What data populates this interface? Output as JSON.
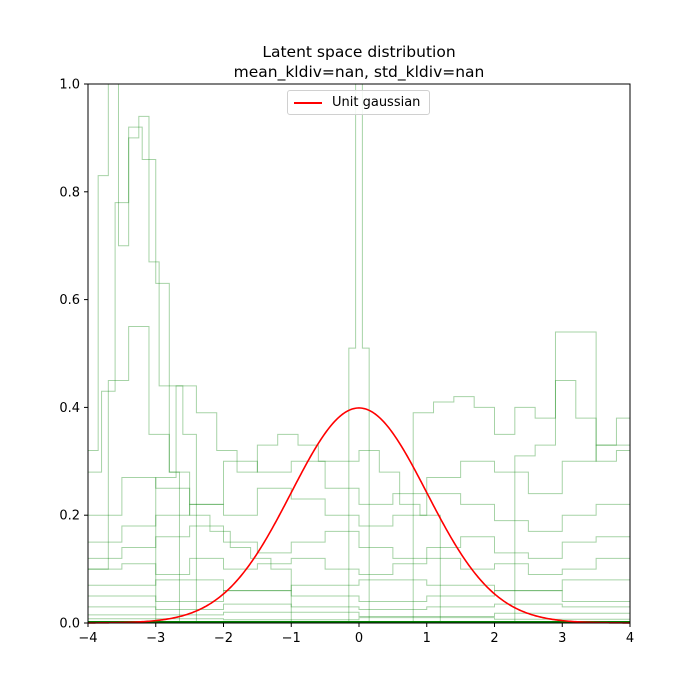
{
  "title_lines": [
    "Latent space distribution",
    "mean_kldiv=nan, std_kldiv=nan"
  ],
  "legend": {
    "label": "Unit gaussian",
    "location": "upper center"
  },
  "colors": {
    "gaussian": "#ff0000",
    "histograms": "#008000",
    "axes": "#000000"
  },
  "chart_data": {
    "type": "line",
    "title": "Latent space distribution\nmean_kldiv=nan, std_kldiv=nan",
    "xlabel": "",
    "ylabel": "",
    "xlim": [
      -4,
      4
    ],
    "ylim": [
      0,
      1.0
    ],
    "x_ticks": [
      "−4",
      "−3",
      "−2",
      "−1",
      "0",
      "1",
      "2",
      "3",
      "4"
    ],
    "y_ticks": [
      "0.0",
      "0.2",
      "0.4",
      "0.6",
      "0.8",
      "1.0"
    ],
    "grid": false,
    "legend_position": "top-center",
    "series": [
      {
        "name": "Unit gaussian",
        "kind": "curve",
        "function": "standard normal pdf",
        "x_range": [
          -4,
          4
        ],
        "peak": 0.399
      }
    ],
    "histograms": [
      {
        "edges": [
          -4,
          -3.85,
          -3.7,
          -3.55,
          -3.4,
          -3.25,
          -3.1,
          -2.95,
          -2.8,
          -2.65
        ],
        "values": [
          0.32,
          0.83,
          1.0,
          0.7,
          0.9,
          0.94,
          0.67,
          0.44,
          0.28
        ]
      },
      {
        "edges": [
          -4,
          -3.8,
          -3.6,
          -3.4,
          -3.2,
          -3.0,
          -2.8,
          -2.6,
          -2.4
        ],
        "values": [
          0.28,
          0.43,
          0.78,
          0.92,
          0.86,
          0.63,
          0.44,
          0.35
        ]
      },
      {
        "edges": [
          -4,
          -3.7,
          -3.4,
          -3.1,
          -2.8,
          -2.5,
          -2.2,
          -1.9,
          -1.6,
          -1.3,
          -1.0
        ],
        "values": [
          0.1,
          0.45,
          0.55,
          0.35,
          0.28,
          0.2,
          0.17,
          0.14,
          0.12,
          0.1
        ]
      },
      {
        "edges": [
          -3.0,
          -2.7,
          -2.4,
          -2.1,
          -1.8,
          -1.5,
          -1.2,
          -0.9,
          -0.6,
          -0.3,
          0.0,
          0.3,
          0.6,
          0.9,
          1.2
        ],
        "values": [
          0.27,
          0.44,
          0.39,
          0.32,
          0.28,
          0.33,
          0.35,
          0.33,
          0.3,
          0.3,
          0.32,
          0.28,
          0.22,
          0.2
        ]
      },
      {
        "edges": [
          -0.15,
          -0.05,
          0.05,
          0.15
        ],
        "values": [
          0.51,
          1.0,
          0.51
        ]
      },
      {
        "edges": [
          0.8,
          1.1,
          1.4,
          1.7,
          2.0,
          2.3,
          2.6,
          2.9,
          3.2,
          3.5,
          3.8,
          4.0
        ],
        "values": [
          0.39,
          0.41,
          0.42,
          0.4,
          0.35,
          0.4,
          0.38,
          0.45,
          0.38,
          0.3,
          0.32
        ]
      },
      {
        "edges": [
          2.3,
          2.6,
          2.9,
          3.2,
          3.5,
          3.8,
          4.0
        ],
        "values": [
          0.31,
          0.33,
          0.54,
          0.54,
          0.33,
          0.38
        ]
      },
      {
        "edges": [
          -4,
          -3.5,
          -3.0,
          -2.5,
          -2.0,
          -1.5,
          -1.0,
          -0.5,
          0.0,
          0.5,
          1.0,
          1.5,
          2.0,
          2.5,
          3.0,
          3.5,
          4.0
        ],
        "values": [
          0.2,
          0.27,
          0.25,
          0.22,
          0.3,
          0.28,
          0.3,
          0.25,
          0.22,
          0.24,
          0.27,
          0.3,
          0.28,
          0.24,
          0.3,
          0.33
        ]
      },
      {
        "edges": [
          -4,
          -3.5,
          -3.0,
          -2.5,
          -2.0,
          -1.5,
          -1.0,
          -0.5,
          0.0,
          0.5,
          1.0,
          1.5,
          2.0,
          2.5,
          3.0,
          3.5,
          4.0
        ],
        "values": [
          0.15,
          0.18,
          0.2,
          0.22,
          0.2,
          0.25,
          0.23,
          0.2,
          0.18,
          0.2,
          0.24,
          0.22,
          0.19,
          0.17,
          0.2,
          0.22
        ]
      },
      {
        "edges": [
          -4,
          -3.5,
          -3.0,
          -2.5,
          -2.0,
          -1.5,
          -1.0,
          -0.5,
          0.0,
          0.5,
          1.0,
          1.5,
          2.0,
          2.5,
          3.0,
          3.5,
          4.0
        ],
        "values": [
          0.12,
          0.14,
          0.16,
          0.18,
          0.15,
          0.13,
          0.15,
          0.17,
          0.14,
          0.12,
          0.14,
          0.16,
          0.13,
          0.12,
          0.15,
          0.16
        ]
      },
      {
        "edges": [
          -4,
          -3.5,
          -3.0,
          -2.5,
          -2.0,
          -1.5,
          -1.0,
          -0.5,
          0.0,
          0.5,
          1.0,
          1.5,
          2.0,
          2.5,
          3.0,
          3.5,
          4.0
        ],
        "values": [
          0.1,
          0.11,
          0.09,
          0.12,
          0.1,
          0.11,
          0.12,
          0.1,
          0.09,
          0.11,
          0.12,
          0.1,
          0.11,
          0.09,
          0.1,
          0.12
        ]
      },
      {
        "edges": [
          -4,
          -3.0,
          -2.0,
          -1.0,
          0.0,
          1.0,
          2.0,
          3.0,
          4.0
        ],
        "values": [
          0.07,
          0.08,
          0.06,
          0.07,
          0.08,
          0.07,
          0.06,
          0.08
        ]
      },
      {
        "edges": [
          -4,
          -3.0,
          -2.0,
          -1.0,
          0.0,
          1.0,
          2.0,
          3.0,
          4.0
        ],
        "values": [
          0.05,
          0.04,
          0.06,
          0.05,
          0.04,
          0.05,
          0.06,
          0.04
        ]
      },
      {
        "edges": [
          -4,
          -3.0,
          -2.0,
          -1.0,
          0.0,
          1.0,
          2.0,
          3.0,
          4.0
        ],
        "values": [
          0.03,
          0.025,
          0.035,
          0.03,
          0.025,
          0.03,
          0.035,
          0.03
        ]
      },
      {
        "edges": [
          -4,
          -2.0,
          0.0,
          2.0,
          4.0
        ],
        "values": [
          0.015,
          0.02,
          0.012,
          0.018
        ]
      },
      {
        "edges": [
          -4,
          -2.0,
          0.0,
          2.0,
          4.0
        ],
        "values": [
          0.008,
          0.006,
          0.01,
          0.007
        ]
      }
    ]
  }
}
